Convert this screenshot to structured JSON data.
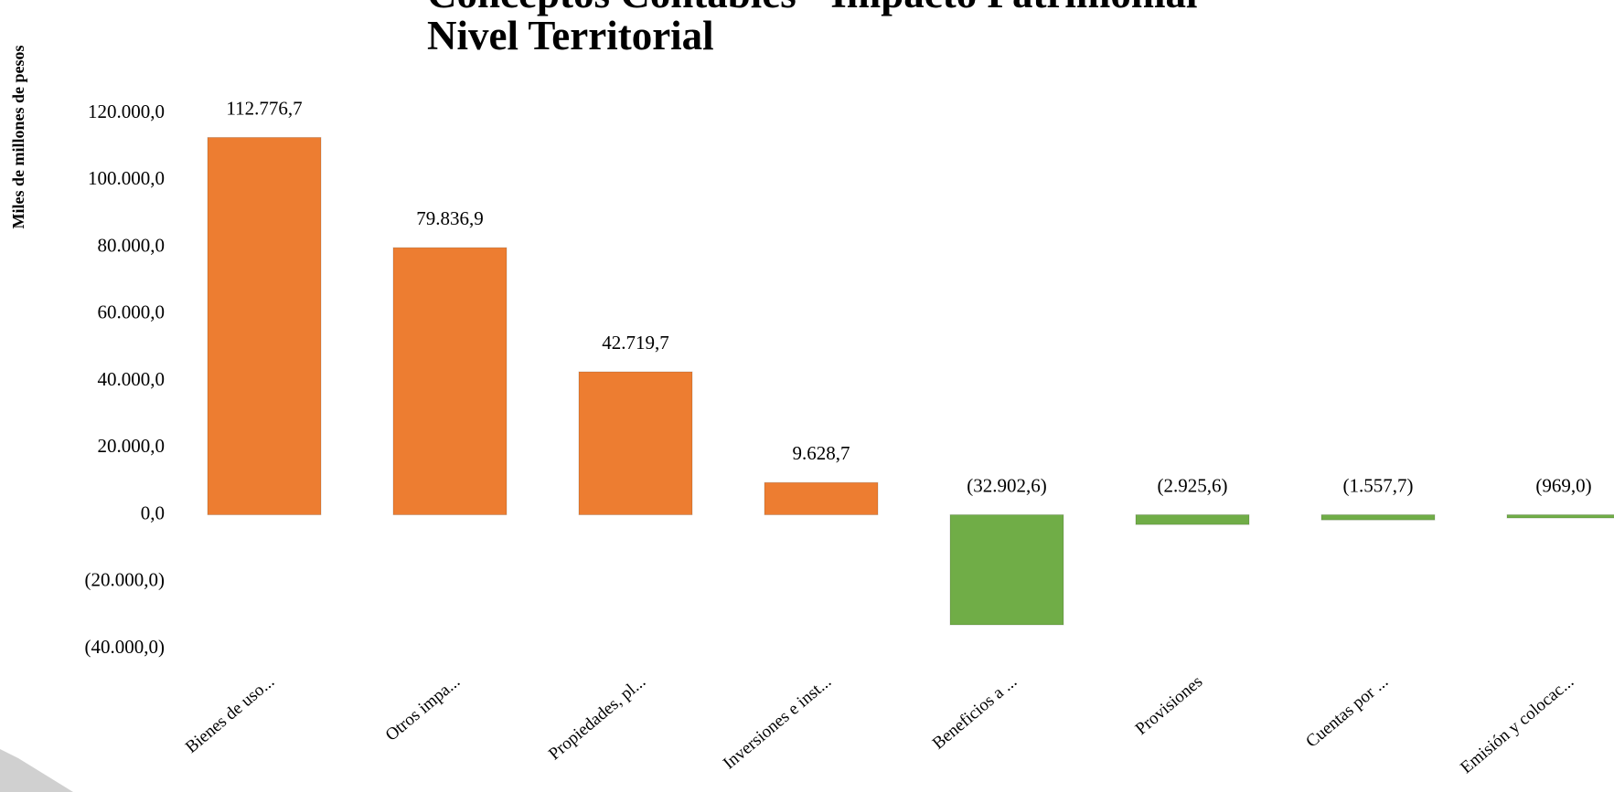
{
  "chart_data": {
    "type": "bar",
    "title": [
      "Conceptos Contables - Impacto Patrimonial",
      "Nivel Territorial"
    ],
    "y_axis_label": "Miles de millones de pesos",
    "categories": [
      "Bienes de uso...",
      "Otros impa...",
      "Propiedades, pl...",
      "Inversiones e inst...",
      "Beneficios a ...",
      "Provisiones",
      "Cuentas por ...",
      "Emisión y colocac..."
    ],
    "values": [
      112776.7,
      79836.9,
      42719.7,
      9628.7,
      -32902.6,
      -2925.6,
      -1557.7,
      -969.0
    ],
    "value_labels": [
      "112.776,7",
      "79.836,9",
      "42.719,7",
      "9.628,7",
      "(32.902,6)",
      "(2.925,6)",
      "(1.557,7)",
      "(969,0)"
    ],
    "colors": [
      "#ED7D31",
      "#ED7D31",
      "#ED7D31",
      "#ED7D31",
      "#70AD47",
      "#70AD47",
      "#70AD47",
      "#70AD47"
    ],
    "ylim": [
      -40000,
      120000
    ],
    "yticks": [
      {
        "value": -40000,
        "label": "(40.000,0)"
      },
      {
        "value": -20000,
        "label": "(20.000,0)"
      },
      {
        "value": 0,
        "label": "0,0"
      },
      {
        "value": 20000,
        "label": "20.000,0"
      },
      {
        "value": 40000,
        "label": "40.000,0"
      },
      {
        "value": 60000,
        "label": "60.000,0"
      },
      {
        "value": 80000,
        "label": "80.000,0"
      },
      {
        "value": 100000,
        "label": "100.000,0"
      },
      {
        "value": 120000,
        "label": "120.000,0"
      }
    ],
    "grid": false
  }
}
